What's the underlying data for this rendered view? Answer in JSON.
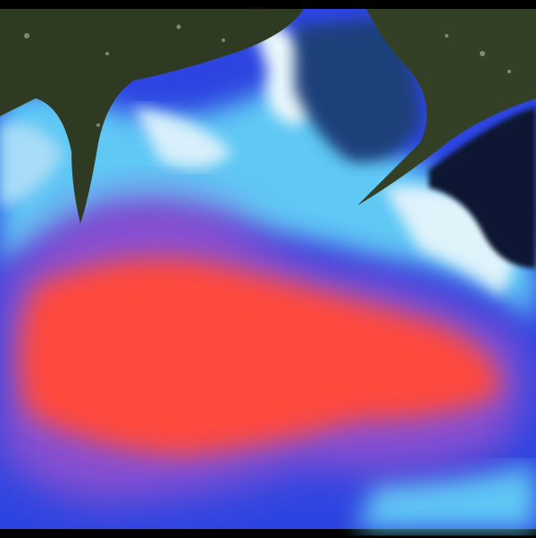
{
  "map": {
    "colors": {
      "land": "#2e3a22",
      "deep_water": "#1f3f7a",
      "cold_current": "#5fc8f5",
      "ice_white": "#e8f6fb",
      "mid_blue": "#3a55e8",
      "warm_plume": "#ff4a3e",
      "violet_edge": "#8a4fd0",
      "frame": "#000000"
    }
  }
}
